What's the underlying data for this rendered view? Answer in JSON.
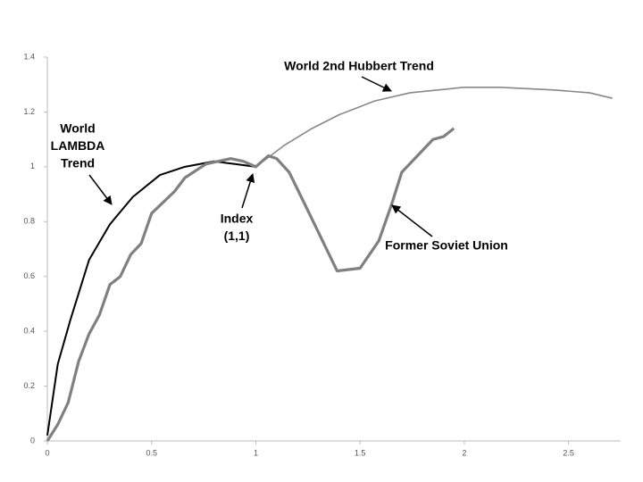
{
  "chart_data": {
    "type": "line",
    "x_series_note_free": null,
    "xlim": [
      0,
      2.75
    ],
    "ylim": [
      0,
      1.4
    ],
    "xticks": [
      0,
      0.5,
      1,
      1.5,
      2,
      2.5
    ],
    "yticks": [
      0,
      0.2,
      0.4,
      0.6,
      0.8,
      1,
      1.2,
      1.4
    ],
    "series": [
      {
        "label_lines": [
          "World",
          "LAMBDA",
          "Trend"
        ],
        "color": "#000000",
        "x": [
          0,
          0.05,
          0.11,
          0.2,
          0.3,
          0.41,
          0.54,
          0.66,
          0.8,
          0.9,
          1
        ],
        "values": [
          0.02,
          0.28,
          0.44,
          0.66,
          0.79,
          0.89,
          0.97,
          1.0,
          1.02,
          1.01,
          1.0
        ]
      },
      {
        "label_lines": [
          "World 2nd Hubbert Trend"
        ],
        "color": "#888888",
        "x": [
          1,
          1.14,
          1.27,
          1.4,
          1.57,
          1.74,
          2.0,
          2.17,
          2.43,
          2.6,
          2.71
        ],
        "values": [
          1.0,
          1.08,
          1.14,
          1.19,
          1.24,
          1.27,
          1.29,
          1.29,
          1.28,
          1.27,
          1.25
        ]
      },
      {
        "label_lines": [
          "Former Soviet Union"
        ],
        "color": "#808080",
        "x": [
          0,
          0.05,
          0.1,
          0.15,
          0.2,
          0.25,
          0.3,
          0.35,
          0.4,
          0.45,
          0.5,
          0.61,
          0.66,
          0.76,
          0.88,
          0.94,
          1,
          1.06,
          1.1,
          1.16,
          1.25,
          1.39,
          1.5,
          1.59,
          1.65,
          1.7,
          1.85,
          1.9,
          1.95
        ],
        "values": [
          0,
          0.06,
          0.14,
          0.29,
          0.39,
          0.46,
          0.57,
          0.6,
          0.68,
          0.72,
          0.83,
          0.91,
          0.96,
          1.01,
          1.03,
          1.02,
          1.0,
          1.04,
          1.03,
          0.98,
          0.84,
          0.62,
          0.63,
          0.73,
          0.86,
          0.98,
          1.1,
          1.11,
          1.14
        ]
      }
    ],
    "annotations": [
      {
        "lines": [
          "Index",
          "(1,1)"
        ]
      }
    ]
  }
}
